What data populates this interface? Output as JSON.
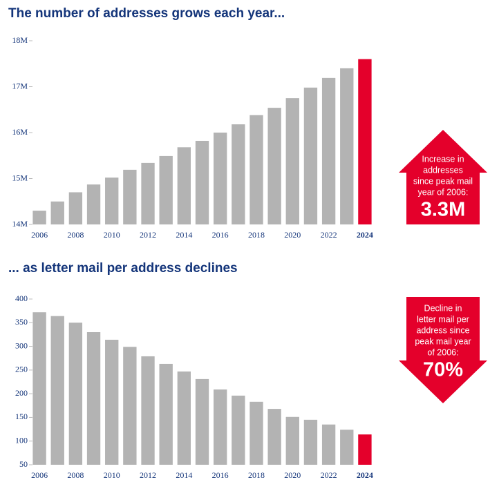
{
  "chart_data": [
    {
      "type": "bar",
      "title": "The number of addresses grows each year...",
      "categories": [
        "2006",
        null,
        "2008",
        null,
        "2010",
        null,
        "2012",
        null,
        "2014",
        null,
        "2016",
        null,
        "2018",
        null,
        "2020",
        null,
        "2022",
        null,
        "2024"
      ],
      "values": [
        14.3,
        14.5,
        14.7,
        14.87,
        15.02,
        15.19,
        15.34,
        15.49,
        15.68,
        15.82,
        16.0,
        16.18,
        16.38,
        16.54,
        16.75,
        16.98,
        17.19,
        17.4,
        17.6
      ],
      "colors": [
        "#b3b3b3",
        "#b3b3b3",
        "#b3b3b3",
        "#b3b3b3",
        "#b3b3b3",
        "#b3b3b3",
        "#b3b3b3",
        "#b3b3b3",
        "#b3b3b3",
        "#b3b3b3",
        "#b3b3b3",
        "#b3b3b3",
        "#b3b3b3",
        "#b3b3b3",
        "#b3b3b3",
        "#b3b3b3",
        "#b3b3b3",
        "#b3b3b3",
        "#e4002b"
      ],
      "ylim": [
        14,
        18
      ],
      "yticks": [
        {
          "value": 14,
          "label": "14M"
        },
        {
          "value": 15,
          "label": "15M"
        },
        {
          "value": 16,
          "label": "16M"
        },
        {
          "value": 17,
          "label": "17M"
        },
        {
          "value": 18,
          "label": "18M"
        }
      ],
      "annotation": {
        "direction": "up",
        "color": "#e4002b",
        "lines": [
          "Increase in",
          "addresses",
          "since peak mail",
          "year of 2006:"
        ],
        "value": "3.3M"
      }
    },
    {
      "type": "bar",
      "title": "... as letter mail per address declines",
      "categories": [
        "2006",
        null,
        "2008",
        null,
        "2010",
        null,
        "2012",
        null,
        "2014",
        null,
        "2016",
        null,
        "2018",
        null,
        "2020",
        null,
        "2022",
        null,
        "2024"
      ],
      "values": [
        372,
        364,
        350,
        330,
        314,
        299,
        279,
        263,
        247,
        231,
        209,
        196,
        183,
        168,
        151,
        145,
        135,
        124,
        114
      ],
      "colors": [
        "#b3b3b3",
        "#b3b3b3",
        "#b3b3b3",
        "#b3b3b3",
        "#b3b3b3",
        "#b3b3b3",
        "#b3b3b3",
        "#b3b3b3",
        "#b3b3b3",
        "#b3b3b3",
        "#b3b3b3",
        "#b3b3b3",
        "#b3b3b3",
        "#b3b3b3",
        "#b3b3b3",
        "#b3b3b3",
        "#b3b3b3",
        "#b3b3b3",
        "#e4002b"
      ],
      "ylim": [
        50,
        400
      ],
      "yticks": [
        50,
        100,
        150,
        200,
        250,
        300,
        350,
        400
      ],
      "annotation": {
        "direction": "down",
        "color": "#e4002b",
        "lines": [
          "Decline in",
          "letter mail per",
          "address since",
          "peak mail year",
          "of 2006:"
        ],
        "value": "70%"
      }
    }
  ]
}
